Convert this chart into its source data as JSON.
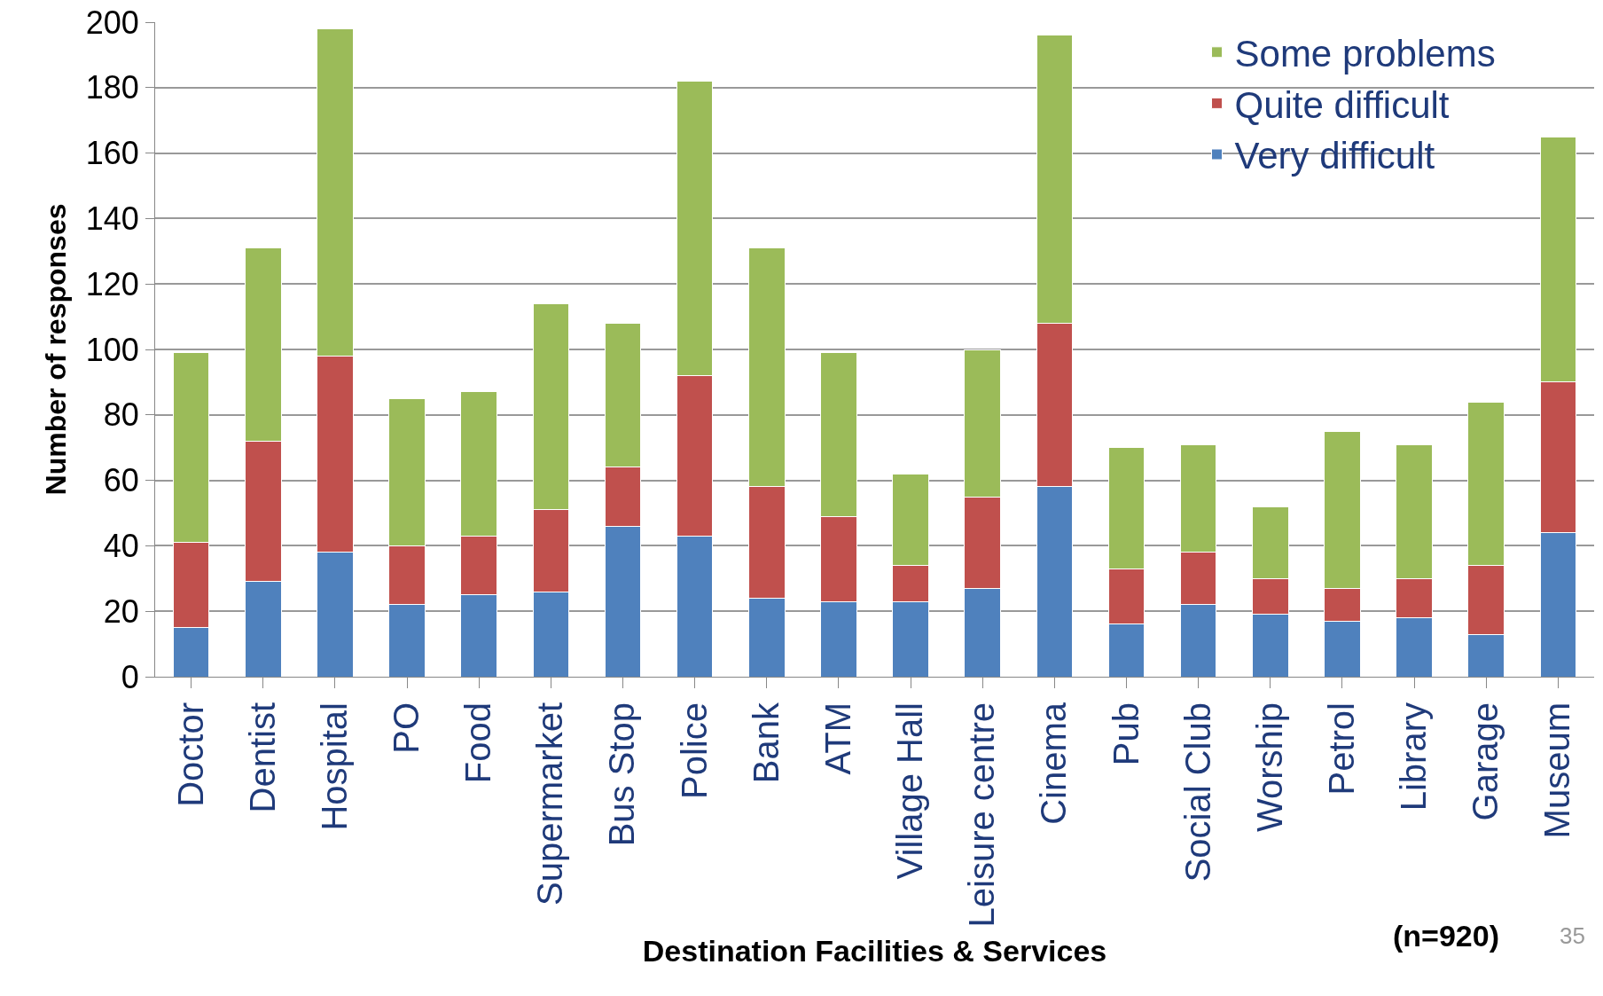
{
  "chart_data": {
    "type": "bar",
    "stacked": true,
    "xlabel": "Destination Facilities & Services",
    "ylabel": "Number of responses",
    "categories": [
      "Doctor",
      "Dentist",
      "Hospital",
      "PO",
      "Food",
      "Supermarket",
      "Bus Stop",
      "Police",
      "Bank",
      "ATM",
      "Village Hall",
      "Leisure centre",
      "Cinema",
      "Pub",
      "Social Club",
      "Worship",
      "Petrol",
      "Library",
      "Garage",
      "Museum"
    ],
    "series": [
      {
        "name": "Very difficult",
        "color": "#4f81bd",
        "values": [
          15,
          29,
          38,
          22,
          25,
          26,
          46,
          43,
          24,
          23,
          23,
          27,
          58,
          16,
          22,
          19,
          17,
          18,
          13,
          44
        ]
      },
      {
        "name": "Quite difficult",
        "color": "#c0504d",
        "values": [
          26,
          43,
          60,
          18,
          18,
          25,
          18,
          49,
          34,
          26,
          11,
          28,
          50,
          17,
          16,
          11,
          10,
          12,
          21,
          46
        ]
      },
      {
        "name": "Some problems",
        "color": "#9bbb59",
        "values": [
          58,
          59,
          100,
          45,
          44,
          63,
          44,
          90,
          73,
          50,
          28,
          45,
          88,
          37,
          33,
          22,
          48,
          41,
          50,
          75
        ]
      }
    ],
    "ylim": [
      0,
      200
    ],
    "yticks": [
      0,
      20,
      40,
      60,
      80,
      100,
      120,
      140,
      160,
      180,
      200
    ],
    "grid": "y",
    "legend": "top right",
    "annotations": [
      "(n=920)",
      "35"
    ]
  }
}
